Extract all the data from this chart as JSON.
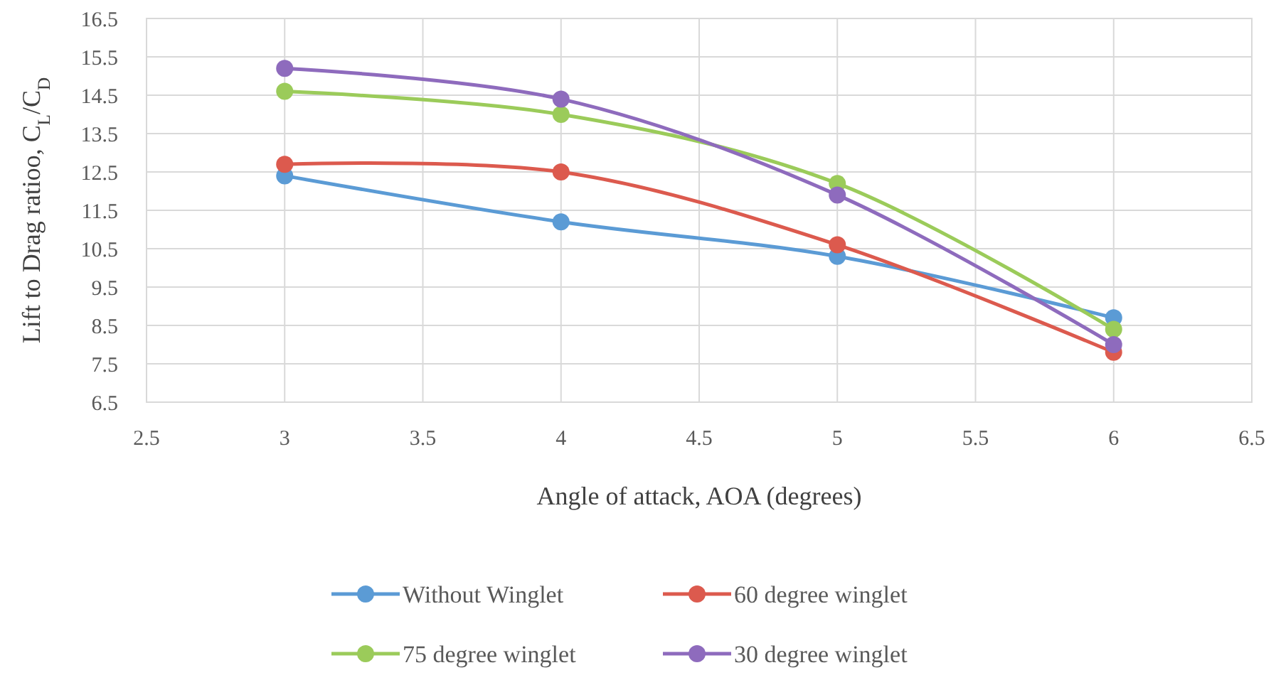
{
  "chart_data": {
    "type": "line",
    "xlabel": "Angle of attack, AOA (degrees)",
    "ylabel": "Lift to Drag ratioo, C$_{L}$/C$_{D}$",
    "x": [
      3,
      4,
      5,
      6
    ],
    "series": [
      {
        "name": "Without Winglet",
        "color": "#5b9bd5",
        "values": [
          12.4,
          11.2,
          10.3,
          8.7
        ]
      },
      {
        "name": "60 degree winglet",
        "color": "#dc5a4e",
        "values": [
          12.7,
          12.5,
          10.6,
          7.8
        ]
      },
      {
        "name": "75 degree winglet",
        "color": "#9bcb5a",
        "values": [
          14.6,
          14.0,
          12.2,
          8.4
        ]
      },
      {
        "name": "30 degree winglet",
        "color": "#8e6bbd",
        "values": [
          15.2,
          14.4,
          11.9,
          8.0
        ]
      }
    ],
    "xlim": [
      2.5,
      6.5
    ],
    "xticks": [
      2.5,
      3,
      3.5,
      4,
      4.5,
      5,
      5.5,
      6,
      6.5
    ],
    "ylim": [
      6.5,
      16.5
    ],
    "yticks": [
      6.5,
      7.5,
      8.5,
      9.5,
      10.5,
      11.5,
      12.5,
      13.5,
      14.5,
      15.5,
      16.5
    ],
    "grid": true,
    "legend": "bottom",
    "marker": "circle",
    "line_style": "solid"
  }
}
